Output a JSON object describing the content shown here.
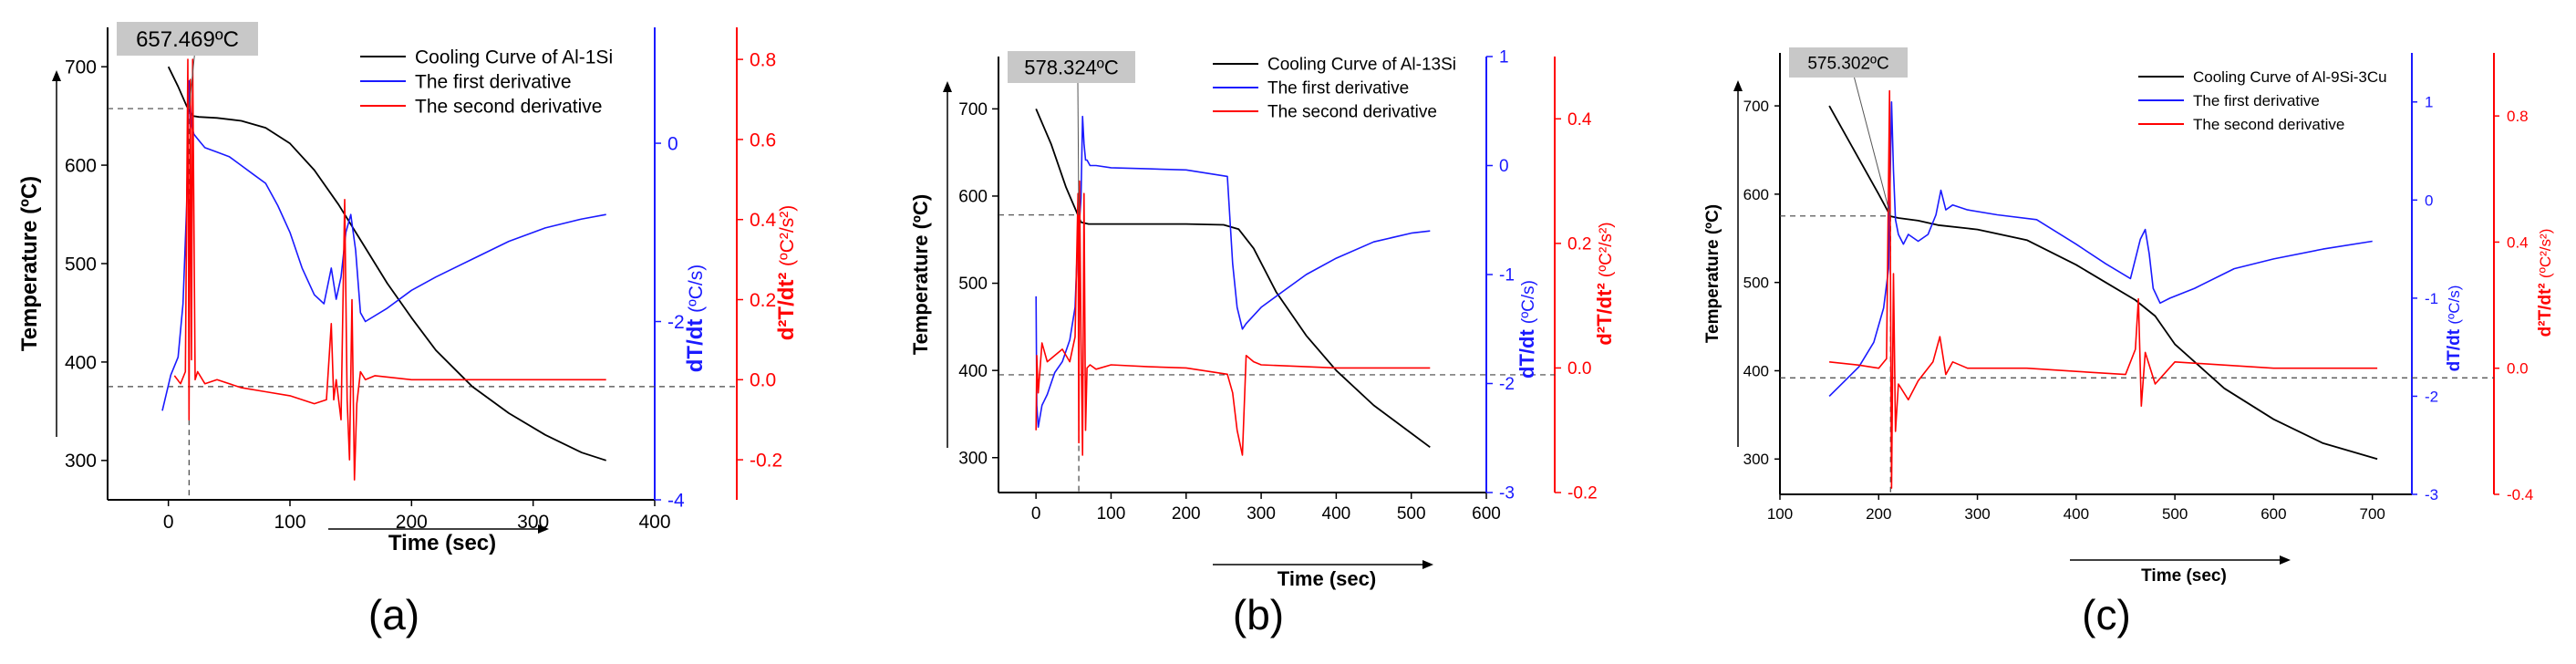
{
  "figure": {
    "description_free": true
  },
  "colors": {
    "temperature": "#000000",
    "first_derivative": "#1a1aff",
    "second_derivative": "#ff0000",
    "annotation_box": "#c8c8c8",
    "reference_line": "#444444"
  },
  "chart_data": [
    {
      "panel_label": "(a)",
      "type": "line",
      "xlabel": "Time (sec)",
      "ylabel": "Temperature (ºC)",
      "y2label": "dT/dt",
      "y2unit": "(ºC/s)",
      "y3label": "d²T/dt²",
      "y3unit": "(ºC²/s²)",
      "xlim": [
        -50,
        400
      ],
      "ylim": [
        260,
        740
      ],
      "y2lim": [
        -4,
        1.3
      ],
      "y3lim": [
        -0.3,
        0.88
      ],
      "xticks": [
        0,
        100,
        200,
        300,
        400
      ],
      "yticks": [
        300,
        400,
        500,
        600,
        700
      ],
      "y2ticks": [
        -4,
        -2,
        0
      ],
      "y3ticks": [
        -0.2,
        0.0,
        0.2,
        0.4,
        0.6,
        0.8
      ],
      "annotation": {
        "text": "657.469ºC",
        "x": 17,
        "y": 657.469
      },
      "zero_line_temp": 375,
      "series": [
        {
          "name": "Cooling Curve of Al-1Si",
          "axis": "y",
          "color": "#000000",
          "x": [
            0,
            8,
            15,
            20,
            25,
            40,
            60,
            80,
            100,
            120,
            140,
            160,
            180,
            200,
            220,
            250,
            280,
            310,
            340,
            360
          ],
          "values": [
            700,
            680,
            660,
            650,
            649,
            648,
            645,
            638,
            622,
            595,
            560,
            520,
            480,
            445,
            412,
            375,
            348,
            326,
            308,
            300
          ]
        },
        {
          "name": "The first derivative",
          "axis": "y2",
          "color": "#1a1aff",
          "x": [
            -5,
            2,
            8,
            12,
            15,
            17,
            19,
            21,
            24,
            27,
            30,
            40,
            50,
            60,
            70,
            80,
            90,
            100,
            110,
            120,
            128,
            134,
            138,
            142,
            146,
            150,
            154,
            158,
            162,
            180,
            200,
            220,
            250,
            280,
            310,
            340,
            360
          ],
          "values": [
            -3.0,
            -2.6,
            -2.4,
            -1.8,
            -0.7,
            0.7,
            0.2,
            0.1,
            0.05,
            0.0,
            -0.05,
            -0.1,
            -0.15,
            -0.25,
            -0.35,
            -0.45,
            -0.7,
            -1.0,
            -1.4,
            -1.7,
            -1.8,
            -1.4,
            -1.75,
            -1.5,
            -1.0,
            -0.8,
            -1.2,
            -1.9,
            -2.0,
            -1.85,
            -1.65,
            -1.5,
            -1.3,
            -1.1,
            -0.95,
            -0.85,
            -0.8
          ]
        },
        {
          "name": "The second derivative",
          "axis": "y3",
          "color": "#ff0000",
          "x": [
            5,
            10,
            14,
            16,
            17,
            18,
            19,
            20,
            22,
            24,
            30,
            40,
            60,
            80,
            100,
            120,
            130,
            134,
            136,
            138,
            142,
            145,
            147,
            149,
            151,
            153,
            155,
            158,
            162,
            170,
            200,
            250,
            300,
            360
          ],
          "values": [
            0.01,
            -0.01,
            0.02,
            0.8,
            -0.1,
            0.75,
            0.05,
            0.8,
            0.0,
            0.02,
            -0.01,
            0.0,
            -0.02,
            -0.03,
            -0.04,
            -0.06,
            -0.05,
            0.14,
            -0.05,
            0.0,
            -0.1,
            0.45,
            -0.05,
            -0.2,
            0.2,
            -0.25,
            -0.06,
            0.02,
            0.0,
            0.01,
            0.0,
            0.0,
            0.0,
            0.0
          ]
        }
      ]
    },
    {
      "panel_label": "(b)",
      "type": "line",
      "xlabel": "Time (sec)",
      "ylabel": "Temperature (ºC)",
      "y2label": "dT/dt",
      "y2unit": "(ºC/s)",
      "y3label": "d²T/dt²",
      "y3unit": "(ºC²/s²)",
      "xlim": [
        -50,
        600
      ],
      "ylim": [
        260,
        760
      ],
      "y2lim": [
        -3,
        1
      ],
      "y3lim": [
        -0.2,
        0.5
      ],
      "xticks": [
        0,
        100,
        200,
        300,
        400,
        500,
        600
      ],
      "yticks": [
        300,
        400,
        500,
        600,
        700
      ],
      "y2ticks": [
        -3,
        -2,
        -1,
        0,
        1
      ],
      "y3ticks": [
        -0.2,
        0.0,
        0.2,
        0.4
      ],
      "annotation": {
        "text": "578.324ºC",
        "x": 57,
        "y": 578.324
      },
      "zero_line_temp": 395,
      "series": [
        {
          "name": "Cooling Curve of Al-13Si",
          "axis": "y",
          "color": "#000000",
          "x": [
            0,
            20,
            40,
            55,
            60,
            70,
            100,
            150,
            200,
            250,
            270,
            290,
            320,
            360,
            400,
            450,
            500,
            525
          ],
          "values": [
            700,
            660,
            610,
            580,
            570,
            568,
            568,
            568,
            568,
            567,
            562,
            540,
            490,
            440,
            400,
            360,
            328,
            312
          ]
        },
        {
          "name": "The first derivative",
          "axis": "y2",
          "color": "#1a1aff",
          "x": [
            0,
            1,
            3,
            8,
            15,
            25,
            35,
            45,
            52,
            56,
            58,
            60,
            62,
            64,
            66,
            68,
            72,
            80,
            100,
            150,
            200,
            255,
            262,
            268,
            275,
            280,
            300,
            330,
            360,
            400,
            450,
            500,
            525
          ],
          "values": [
            -1.2,
            -2.2,
            -2.4,
            -2.2,
            -2.1,
            -1.9,
            -1.8,
            -1.6,
            -1.3,
            -0.6,
            -0.5,
            -0.3,
            0.45,
            0.2,
            0.05,
            0.05,
            0.0,
            0.0,
            -0.02,
            -0.03,
            -0.04,
            -0.1,
            -0.9,
            -1.3,
            -1.5,
            -1.45,
            -1.3,
            -1.15,
            -1.0,
            -0.85,
            -0.7,
            -0.62,
            -0.6
          ]
        },
        {
          "name": "The second derivative",
          "axis": "y3",
          "color": "#ff0000",
          "x": [
            0,
            1,
            3,
            8,
            15,
            25,
            35,
            45,
            52,
            56,
            57,
            58,
            60,
            62,
            64,
            66,
            68,
            72,
            80,
            100,
            150,
            200,
            255,
            262,
            268,
            275,
            280,
            290,
            300,
            400,
            525
          ],
          "values": [
            -0.1,
            0.02,
            -0.04,
            0.04,
            0.01,
            0.02,
            0.03,
            0.01,
            0.05,
            0.28,
            -0.12,
            0.3,
            0.05,
            -0.14,
            0.28,
            -0.1,
            0.0,
            0.005,
            -0.002,
            0.005,
            0.002,
            0.0,
            -0.01,
            -0.04,
            -0.1,
            -0.14,
            0.02,
            0.01,
            0.005,
            0.0,
            0.0
          ]
        }
      ]
    },
    {
      "panel_label": "(c)",
      "type": "line",
      "xlabel": "Time (sec)",
      "ylabel": "Temperature (ºC)",
      "y2label": "dT/dt",
      "y2unit": "(ºC/s)",
      "y3label": "d²T/dt²",
      "y3unit": "(ºC²/s²)",
      "xlim": [
        100,
        740
      ],
      "ylim": [
        260,
        760
      ],
      "y2lim": [
        -3,
        1.5
      ],
      "y3lim": [
        -0.4,
        1.0
      ],
      "xticks": [
        100,
        200,
        300,
        400,
        500,
        600,
        700
      ],
      "yticks": [
        300,
        400,
        500,
        600,
        700
      ],
      "y2ticks": [
        -3,
        -2,
        -1,
        0,
        1
      ],
      "y3ticks": [
        -0.4,
        0.0,
        0.4,
        0.8
      ],
      "annotation": {
        "text": "575.302ºC",
        "x": 212,
        "y": 575.302
      },
      "zero_line_temp": 392,
      "series": [
        {
          "name": "Cooling Curve of Al-9Si-3Cu",
          "axis": "y",
          "color": "#000000",
          "x": [
            150,
            180,
            200,
            212,
            220,
            240,
            260,
            300,
            350,
            400,
            430,
            460,
            480,
            500,
            550,
            600,
            650,
            705
          ],
          "values": [
            700,
            640,
            600,
            575,
            573,
            570,
            565,
            560,
            548,
            520,
            500,
            480,
            462,
            430,
            380,
            345,
            318,
            300
          ]
        },
        {
          "name": "The first derivative",
          "axis": "y2",
          "color": "#1a1aff",
          "x": [
            150,
            165,
            180,
            195,
            205,
            210,
            213,
            215,
            217,
            220,
            225,
            230,
            240,
            250,
            258,
            263,
            268,
            275,
            290,
            320,
            360,
            400,
            430,
            455,
            465,
            470,
            474,
            478,
            485,
            495,
            520,
            560,
            600,
            650,
            700
          ],
          "values": [
            -2.0,
            -1.85,
            -1.7,
            -1.45,
            -1.1,
            -0.7,
            1.0,
            0.3,
            -0.2,
            -0.35,
            -0.45,
            -0.35,
            -0.42,
            -0.35,
            -0.15,
            0.1,
            -0.1,
            -0.05,
            -0.1,
            -0.15,
            -0.2,
            -0.45,
            -0.65,
            -0.8,
            -0.4,
            -0.3,
            -0.55,
            -0.9,
            -1.05,
            -1.0,
            -0.9,
            -0.7,
            -0.6,
            -0.5,
            -0.42
          ]
        },
        {
          "name": "The second derivative",
          "axis": "y3",
          "color": "#ff0000",
          "x": [
            150,
            180,
            200,
            208,
            211,
            213,
            215,
            217,
            220,
            230,
            240,
            255,
            262,
            268,
            275,
            290,
            350,
            400,
            450,
            460,
            463,
            466,
            470,
            480,
            500,
            600,
            705
          ],
          "values": [
            0.02,
            0.01,
            0.0,
            0.03,
            0.88,
            -0.38,
            0.3,
            -0.2,
            -0.05,
            -0.1,
            -0.04,
            0.02,
            0.1,
            -0.02,
            0.02,
            0.0,
            0.0,
            -0.01,
            -0.02,
            0.06,
            0.22,
            -0.12,
            0.05,
            -0.05,
            0.02,
            0.0,
            0.0
          ]
        }
      ]
    }
  ]
}
